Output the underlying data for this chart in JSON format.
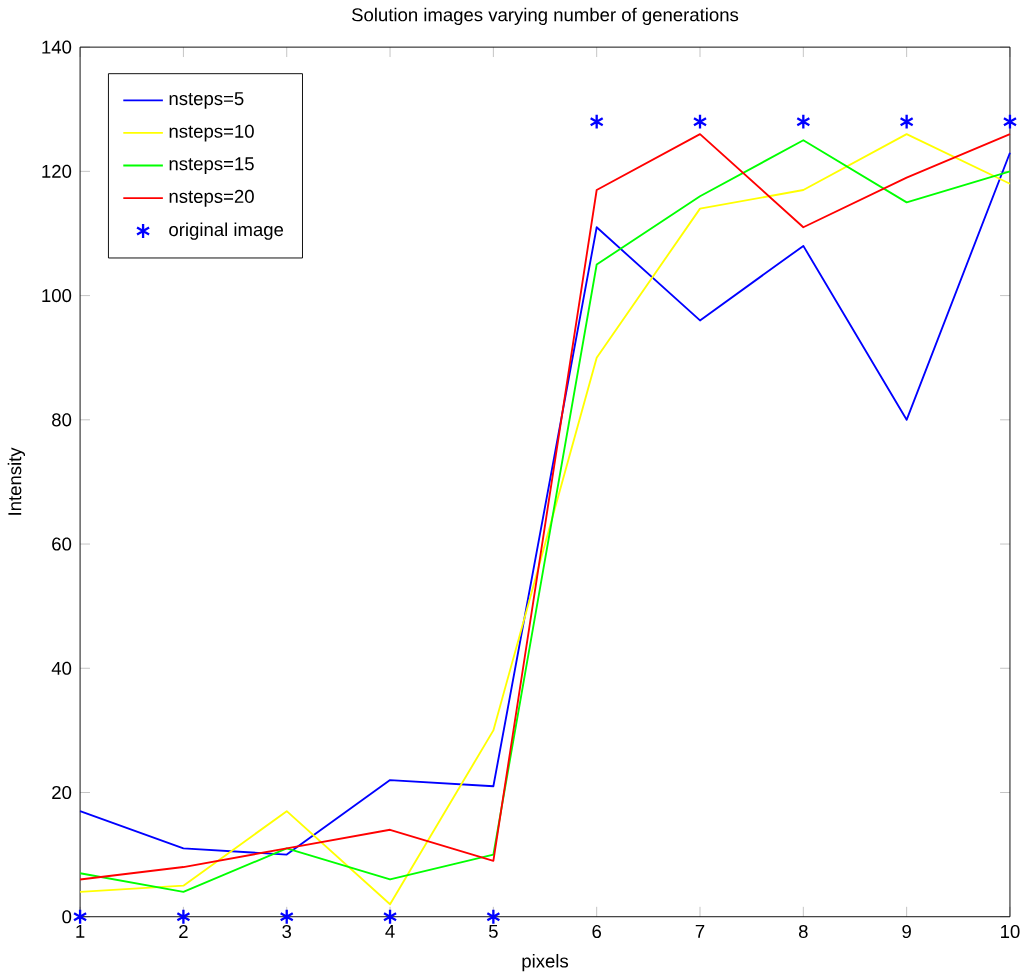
{
  "chart_data": {
    "type": "line",
    "title": "Solution images varying number of generations",
    "xlabel": "pixels",
    "ylabel": "Intensity",
    "x": [
      1,
      2,
      3,
      4,
      5,
      6,
      7,
      8,
      9,
      10
    ],
    "series": [
      {
        "name": "nsteps=5",
        "color": "#0000ff",
        "values": [
          17,
          11,
          10,
          22,
          21,
          111,
          96,
          108,
          80,
          123
        ]
      },
      {
        "name": "nsteps=10",
        "color": "#ffff00",
        "values": [
          4,
          5,
          17,
          2,
          30,
          90,
          114,
          117,
          126,
          118
        ]
      },
      {
        "name": "nsteps=15",
        "color": "#00ff00",
        "values": [
          7,
          4,
          11,
          6,
          10,
          105,
          116,
          125,
          115,
          120
        ]
      },
      {
        "name": "nsteps=20",
        "color": "#ff0000",
        "values": [
          6,
          8,
          11,
          14,
          9,
          117,
          126,
          111,
          119,
          126
        ]
      },
      {
        "name": "original image",
        "color": "#0000ff",
        "type": "scatter",
        "marker": "cross",
        "values": [
          0,
          0,
          0,
          0,
          0,
          128,
          128,
          128,
          128,
          128
        ]
      }
    ],
    "xlim": [
      1,
      10
    ],
    "ylim": [
      0,
      140
    ],
    "xticks": [
      1,
      2,
      3,
      4,
      5,
      6,
      7,
      8,
      9,
      10
    ],
    "yticks": [
      0,
      20,
      40,
      60,
      80,
      100,
      120,
      140
    ],
    "grid": false,
    "legend": "top left"
  }
}
